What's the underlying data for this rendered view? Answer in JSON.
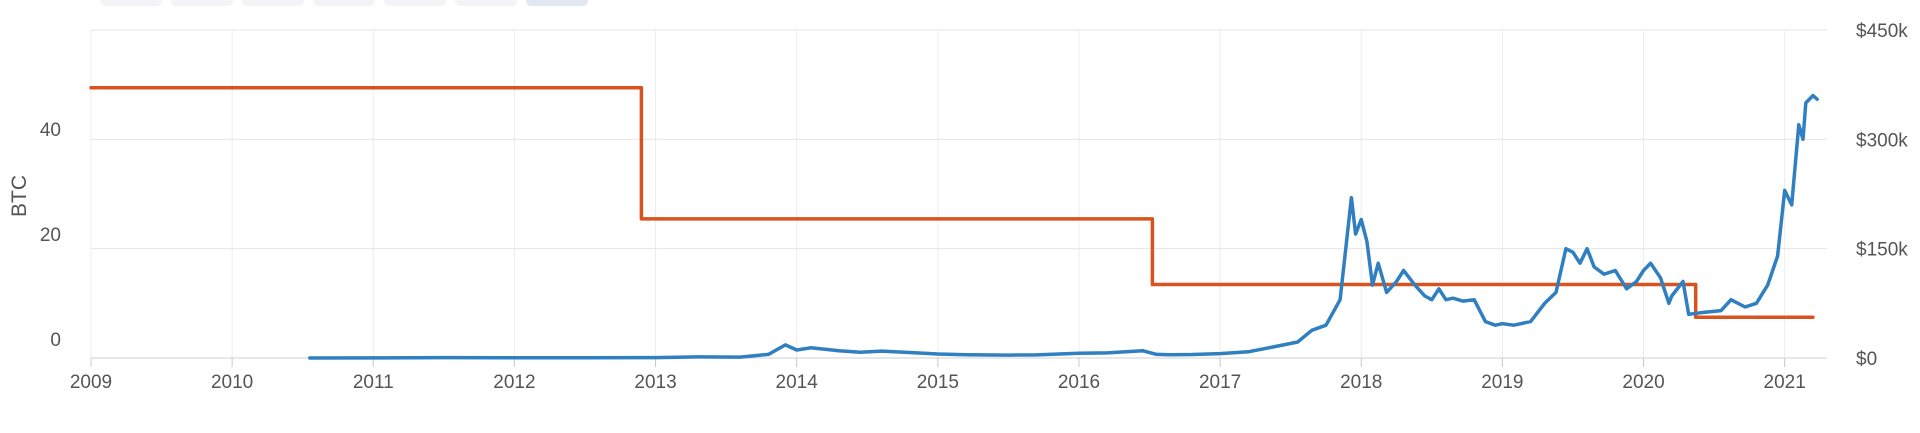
{
  "range_buttons": [
    {
      "label": "",
      "active": false
    },
    {
      "label": "",
      "active": false
    },
    {
      "label": "",
      "active": false
    },
    {
      "label": "",
      "active": false
    },
    {
      "label": "",
      "active": false
    },
    {
      "label": "",
      "active": false
    },
    {
      "label": "",
      "active": true
    }
  ],
  "chart_data": {
    "type": "line",
    "title": "",
    "xlabel": "",
    "ylabel": "BTC",
    "y2label": "",
    "xlim": [
      2009,
      2021.3
    ],
    "ylim": [
      -1.5,
      61
    ],
    "y2lim": [
      0,
      450000
    ],
    "x_ticks": [
      {
        "v": 2009,
        "label": "2009"
      },
      {
        "v": 2010,
        "label": "2010"
      },
      {
        "v": 2011,
        "label": "2011"
      },
      {
        "v": 2012,
        "label": "2012"
      },
      {
        "v": 2013,
        "label": "2013"
      },
      {
        "v": 2014,
        "label": "2014"
      },
      {
        "v": 2015,
        "label": "2015"
      },
      {
        "v": 2016,
        "label": "2016"
      },
      {
        "v": 2017,
        "label": "2017"
      },
      {
        "v": 2018,
        "label": "2018"
      },
      {
        "v": 2019,
        "label": "2019"
      },
      {
        "v": 2020,
        "label": "2020"
      },
      {
        "v": 2021,
        "label": "2021"
      }
    ],
    "y_ticks": [
      {
        "v": 0,
        "label": "0"
      },
      {
        "v": 20,
        "label": "20"
      },
      {
        "v": 40,
        "label": "40"
      }
    ],
    "y2_ticks": [
      {
        "v": 0,
        "label": "$0"
      },
      {
        "v": 150000,
        "label": "$150k"
      },
      {
        "v": 300000,
        "label": "$300k"
      },
      {
        "v": 450000,
        "label": "$450k"
      }
    ],
    "grid": true,
    "series": [
      {
        "name": "",
        "axis": "left",
        "color": "#d9531e",
        "step": true,
        "x": [
          2009.0,
          2012.9,
          2012.9,
          2016.52,
          2016.52,
          2020.37,
          2020.37,
          2021.2
        ],
        "values": [
          50,
          50,
          25,
          25,
          12.5,
          12.5,
          6.25,
          6.25
        ]
      },
      {
        "name": "",
        "axis": "right",
        "color": "#2f7fc1",
        "step": false,
        "x": [
          2010.55,
          2011.0,
          2011.5,
          2012.0,
          2012.5,
          2013.0,
          2013.3,
          2013.6,
          2013.8,
          2013.92,
          2014.0,
          2014.1,
          2014.3,
          2014.45,
          2014.6,
          2014.8,
          2015.0,
          2015.2,
          2015.5,
          2015.7,
          2016.0,
          2016.2,
          2016.45,
          2016.55,
          2016.65,
          2016.8,
          2017.0,
          2017.2,
          2017.45,
          2017.55,
          2017.65,
          2017.75,
          2017.85,
          2017.93,
          2017.96,
          2018.0,
          2018.04,
          2018.08,
          2018.12,
          2018.18,
          2018.25,
          2018.3,
          2018.38,
          2018.45,
          2018.5,
          2018.55,
          2018.6,
          2018.65,
          2018.72,
          2018.8,
          2018.88,
          2018.95,
          2019.0,
          2019.08,
          2019.2,
          2019.3,
          2019.38,
          2019.45,
          2019.5,
          2019.55,
          2019.6,
          2019.65,
          2019.72,
          2019.8,
          2019.88,
          2019.95,
          2020.0,
          2020.05,
          2020.12,
          2020.18,
          2020.2,
          2020.28,
          2020.32,
          2020.4,
          2020.55,
          2020.62,
          2020.72,
          2020.8,
          2020.88,
          2020.95,
          2021.0,
          2021.05,
          2021.1,
          2021.13,
          2021.15,
          2021.2,
          2021.23
        ],
        "values": [
          0,
          200,
          500,
          300,
          400,
          500,
          1500,
          1200,
          5000,
          18000,
          11000,
          14000,
          10000,
          8000,
          9500,
          7500,
          5500,
          4500,
          4000,
          4200,
          6500,
          7000,
          10000,
          5000,
          4500,
          4800,
          6000,
          8500,
          18000,
          22000,
          38000,
          45000,
          80000,
          220000,
          170000,
          190000,
          160000,
          100000,
          130000,
          90000,
          105000,
          120000,
          100000,
          85000,
          80000,
          95000,
          80000,
          82000,
          78000,
          80000,
          50000,
          45000,
          47000,
          45000,
          50000,
          75000,
          90000,
          150000,
          145000,
          130000,
          150000,
          125000,
          115000,
          120000,
          95000,
          105000,
          120000,
          130000,
          110000,
          75000,
          85000,
          105000,
          60000,
          62000,
          65000,
          80000,
          70000,
          75000,
          100000,
          140000,
          230000,
          210000,
          320000,
          300000,
          350000,
          360000,
          355000
        ]
      }
    ]
  }
}
